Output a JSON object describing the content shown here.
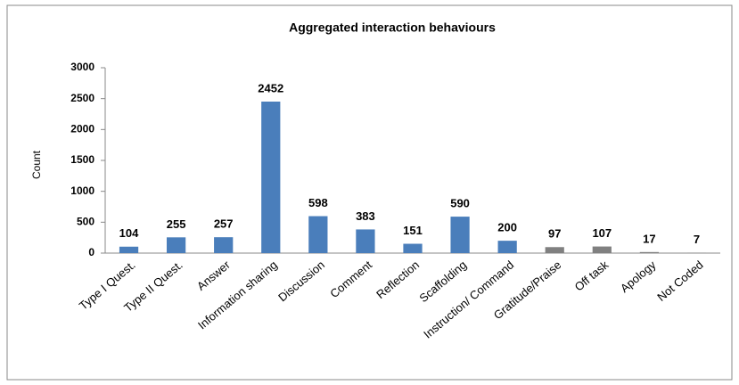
{
  "chart_data": {
    "type": "bar",
    "title": "Aggregated interaction behaviours",
    "y_label": "Count",
    "categories": [
      "Type I Quest.",
      "Type II Quest.",
      "Answer",
      "Information sharing",
      "Discussion",
      "Comment",
      "Reflection",
      "Scaffolding",
      "Instruction/ Command",
      "Gratitude/Praise",
      "Off task",
      "Apology",
      "Not Coded"
    ],
    "values": [
      104,
      255,
      257,
      2452,
      598,
      383,
      151,
      590,
      200,
      97,
      107,
      17,
      7
    ],
    "colors": [
      "#4a7ebb",
      "#4a7ebb",
      "#4a7ebb",
      "#4a7ebb",
      "#4a7ebb",
      "#4a7ebb",
      "#4a7ebb",
      "#4a7ebb",
      "#4a7ebb",
      "#808080",
      "#808080",
      "#808080",
      "#808080"
    ],
    "ylim": [
      0,
      3000
    ],
    "yticks": [
      0,
      500,
      1000,
      1500,
      2000,
      2500,
      3000
    ],
    "grid": false
  }
}
